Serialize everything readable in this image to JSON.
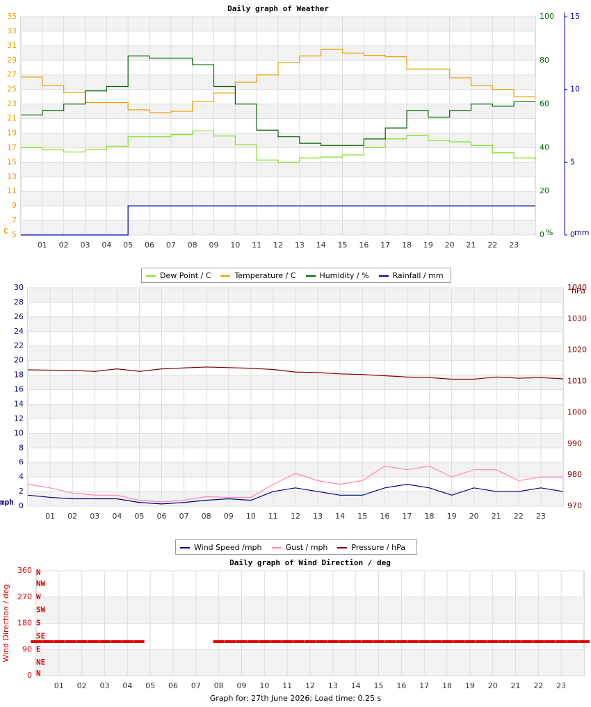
{
  "chart_data": [
    {
      "type": "line",
      "step": true,
      "title": "Daily graph of Weather",
      "grid": true,
      "ylabel": "C",
      "y2label": "%",
      "y3label": "mm",
      "ycolor": "#e8a000",
      "y2color": "#006400",
      "y3color": "#0000b0",
      "x": [
        0,
        1,
        2,
        3,
        4,
        5,
        6,
        7,
        8,
        9,
        10,
        11,
        12,
        13,
        14,
        15,
        16,
        17,
        18,
        19,
        20,
        21,
        22,
        23,
        24
      ],
      "xlim": [
        0,
        24
      ],
      "xticks": [
        {
          "value": 1,
          "label": "01"
        },
        {
          "value": 2,
          "label": "02"
        },
        {
          "value": 3,
          "label": "03"
        },
        {
          "value": 4,
          "label": "04"
        },
        {
          "value": 5,
          "label": "05"
        },
        {
          "value": 6,
          "label": "06"
        },
        {
          "value": 7,
          "label": "07"
        },
        {
          "value": 8,
          "label": "08"
        },
        {
          "value": 9,
          "label": "09"
        },
        10,
        11,
        12,
        13,
        14,
        15,
        16,
        17,
        18,
        19,
        20,
        21,
        22,
        23
      ],
      "ylim": [
        5,
        35
      ],
      "yticks": [
        5,
        7,
        9,
        11,
        13,
        15,
        17,
        19,
        21,
        23,
        25,
        27,
        29,
        31,
        33,
        35
      ],
      "y2lim": [
        0,
        100
      ],
      "y2ticks": [
        0,
        20,
        40,
        60,
        80,
        100
      ],
      "y3lim": [
        0,
        15
      ],
      "y3ticks": [
        0,
        5,
        10,
        15
      ],
      "series": [
        {
          "name": "Dew Point / C",
          "color": "#80e020",
          "values": [
            17,
            16.7,
            16.4,
            16.7,
            17.2,
            18.5,
            18.5,
            18.8,
            19.3,
            18.6,
            17.4,
            15.3,
            15,
            15.6,
            15.7,
            16,
            17,
            18.2,
            18.7,
            18,
            17.8,
            17.3,
            16.3,
            15.6,
            15.3
          ]
        },
        {
          "name": "Temperature / C",
          "color": "#e8a000",
          "values": [
            26.7,
            25.5,
            24.6,
            23.2,
            23.2,
            22.2,
            21.8,
            22,
            23.3,
            24.5,
            26,
            27,
            28.7,
            29.6,
            30.5,
            30,
            29.7,
            29.5,
            27.8,
            27.8,
            26.6,
            25.5,
            25,
            24,
            24
          ]
        },
        {
          "name": "Humidity / %",
          "color": "#006400",
          "axis": "y2",
          "values": [
            55,
            57,
            60,
            66,
            68,
            82,
            81,
            81,
            78,
            68,
            60,
            48,
            45,
            42,
            41,
            41,
            44,
            49,
            57,
            54,
            57,
            60,
            59,
            61,
            61
          ]
        },
        {
          "name": "Rainfall / mm",
          "color": "#0000b0",
          "axis": "y3",
          "values": [
            0,
            0,
            0,
            0,
            0,
            2,
            2,
            2,
            2,
            2,
            2,
            2,
            2,
            2,
            2,
            2,
            2,
            2,
            2,
            2,
            2,
            2,
            2,
            2,
            2
          ]
        }
      ]
    },
    {
      "type": "line",
      "step": false,
      "grid": true,
      "ylabel": "mph",
      "y2label": "hPa",
      "ycolor": "#000080",
      "y2color": "#800000",
      "x": [
        0,
        1,
        2,
        3,
        4,
        5,
        6,
        7,
        8,
        9,
        10,
        11,
        12,
        13,
        14,
        15,
        16,
        17,
        18,
        19,
        20,
        21,
        22,
        23,
        24
      ],
      "xlim": [
        0,
        24
      ],
      "xticks": [
        {
          "value": 1,
          "label": "01"
        },
        {
          "value": 2,
          "label": "02"
        },
        {
          "value": 3,
          "label": "03"
        },
        {
          "value": 4,
          "label": "04"
        },
        {
          "value": 5,
          "label": "05"
        },
        {
          "value": 6,
          "label": "06"
        },
        {
          "value": 7,
          "label": "07"
        },
        {
          "value": 8,
          "label": "08"
        },
        {
          "value": 9,
          "label": "09"
        },
        10,
        11,
        12,
        13,
        14,
        15,
        16,
        17,
        18,
        19,
        20,
        21,
        22,
        23
      ],
      "ylim": [
        0,
        30
      ],
      "yticks": [
        0,
        2,
        4,
        6,
        8,
        10,
        12,
        14,
        16,
        18,
        20,
        22,
        24,
        26,
        28,
        30
      ],
      "y2lim": [
        970,
        1040
      ],
      "y2ticks": [
        970,
        980,
        990,
        1000,
        1010,
        1020,
        1030,
        1040
      ],
      "series": [
        {
          "name": "Wind Speed /mph",
          "color": "#000080",
          "values": [
            1.5,
            1.2,
            1,
            1,
            1,
            0.5,
            0.3,
            0.5,
            0.8,
            1,
            0.8,
            2,
            2.5,
            2,
            1.5,
            1.5,
            2.5,
            3,
            2.5,
            1.5,
            2.5,
            2,
            2,
            2.5,
            2
          ]
        },
        {
          "name": "Gust / mph",
          "color": "#ff88aa",
          "values": [
            3,
            2.5,
            1.8,
            1.5,
            1.5,
            0.8,
            0.6,
            0.8,
            1.3,
            1.2,
            1.2,
            3,
            4.5,
            3.5,
            3,
            3.5,
            5.5,
            5,
            5.5,
            4,
            5,
            5,
            3.5,
            4,
            4
          ]
        },
        {
          "name": "Pressure / hPa",
          "color": "#800000",
          "axis": "y2",
          "values": [
            1013.7,
            1013.6,
            1013.5,
            1013.2,
            1014,
            1013.2,
            1014,
            1014.3,
            1014.6,
            1014.4,
            1014.2,
            1013.8,
            1013,
            1012.8,
            1012.4,
            1012.2,
            1011.8,
            1011.4,
            1011.2,
            1010.7,
            1010.7,
            1011.4,
            1011,
            1011.2,
            1010.8
          ]
        }
      ]
    },
    {
      "type": "scatter",
      "title": "Daily graph of Wind Direction / deg",
      "grid": true,
      "ylabel": "Wind Direction / deg",
      "ycolor": "#e00000",
      "y2color": "#e00000",
      "x": [
        0,
        0.5,
        1,
        1.5,
        2,
        2.5,
        3,
        3.5,
        4,
        4.5,
        8,
        8.5,
        9,
        9.5,
        10,
        10.5,
        11,
        11.5,
        12,
        12.5,
        13,
        13.5,
        14,
        14.5,
        15,
        15.5,
        16,
        16.5,
        17,
        17.5,
        18,
        18.5,
        19,
        19.5,
        20,
        20.5,
        21,
        21.5,
        22,
        22.5,
        23,
        23.5,
        24
      ],
      "xlim": [
        0,
        24
      ],
      "xticks": [
        {
          "value": 1,
          "label": "01"
        },
        {
          "value": 2,
          "label": "02"
        },
        {
          "value": 3,
          "label": "03"
        },
        {
          "value": 4,
          "label": "04"
        },
        {
          "value": 5,
          "label": "05"
        },
        {
          "value": 6,
          "label": "06"
        },
        {
          "value": 7,
          "label": "07"
        },
        {
          "value": 8,
          "label": "08"
        },
        {
          "value": 9,
          "label": "09"
        },
        10,
        11,
        12,
        13,
        14,
        15,
        16,
        17,
        18,
        19,
        20,
        21,
        22,
        23
      ],
      "ylim": [
        0,
        360
      ],
      "yticks": [
        0,
        90,
        180,
        270,
        360
      ],
      "y2lim": [
        0,
        360
      ],
      "y2ticks": [
        {
          "value": 0,
          "label": "N"
        },
        {
          "value": 45,
          "label": "NE"
        },
        {
          "value": 90,
          "label": "E"
        },
        {
          "value": 135,
          "label": "SE"
        },
        {
          "value": 180,
          "label": "S"
        },
        {
          "value": 225,
          "label": "SW"
        },
        {
          "value": 270,
          "label": "W"
        },
        {
          "value": 315,
          "label": "NW"
        },
        {
          "value": 360,
          "label": "N"
        }
      ],
      "series": [
        {
          "name": "Wind Direction",
          "color": "#e00000",
          "values": [
            117,
            117,
            117,
            117,
            117,
            117,
            117,
            117,
            117,
            117,
            117,
            117,
            117,
            117,
            117,
            117,
            117,
            117,
            117,
            117,
            117,
            117,
            117,
            117,
            117,
            117,
            117,
            117,
            117,
            117,
            117,
            117,
            117,
            117,
            117,
            117,
            117,
            117,
            117,
            117,
            117,
            117,
            117
          ]
        }
      ]
    }
  ],
  "footer": "Graph for: 27th June 2026; Load time: 0.25 s"
}
